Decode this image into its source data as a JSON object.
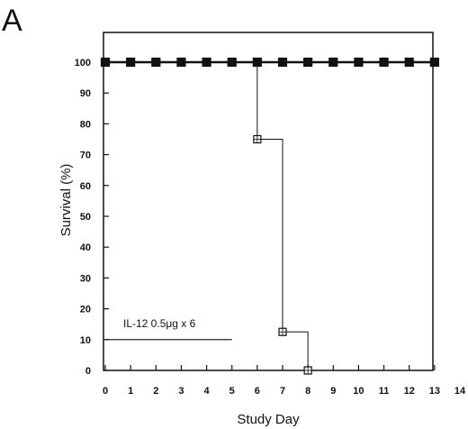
{
  "chart_data": {
    "type": "line",
    "panel_label": "A",
    "xlabel": "Study Day",
    "ylabel": "Survival (%)",
    "xlim": [
      0,
      14
    ],
    "ylim": [
      0,
      100
    ],
    "x_ticks": [
      0,
      1,
      2,
      3,
      4,
      5,
      6,
      7,
      8,
      9,
      10,
      11,
      12,
      13,
      14
    ],
    "y_ticks": [
      0,
      10,
      20,
      30,
      40,
      50,
      60,
      70,
      80,
      90,
      100
    ],
    "grid": false,
    "series": [
      {
        "marker": "filled-square",
        "step": false,
        "x": [
          0,
          1,
          2,
          3,
          4,
          5,
          6,
          7,
          8,
          9,
          10,
          11,
          12,
          13
        ],
        "y": [
          100,
          100,
          100,
          100,
          100,
          100,
          100,
          100,
          100,
          100,
          100,
          100,
          100,
          100
        ]
      },
      {
        "marker": "open-square",
        "step": true,
        "x": [
          0,
          6,
          7,
          8
        ],
        "y": [
          100,
          75,
          12.5,
          0
        ]
      }
    ],
    "annotation": {
      "text": "IL-12 0.5μg x 6",
      "x_start": 0,
      "x_end": 5,
      "y": 10
    }
  }
}
